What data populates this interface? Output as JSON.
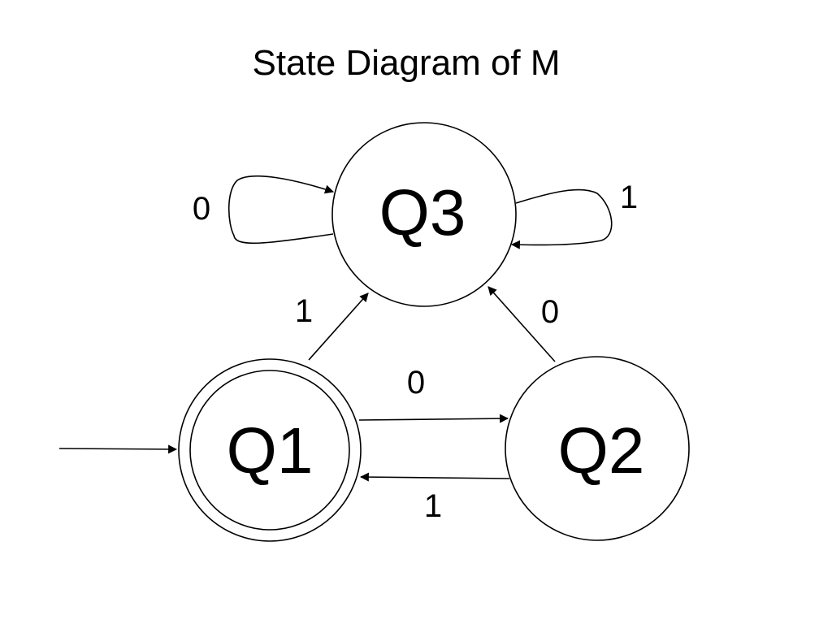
{
  "title": "State Diagram of M",
  "states": [
    {
      "id": "q1",
      "label": "Q1",
      "accepting": true,
      "start": true
    },
    {
      "id": "q2",
      "label": "Q2",
      "accepting": false,
      "start": false
    },
    {
      "id": "q3",
      "label": "Q3",
      "accepting": false,
      "start": false
    }
  ],
  "transitions": [
    {
      "from": "Q1",
      "to": "Q2",
      "symbol": "0"
    },
    {
      "from": "Q2",
      "to": "Q1",
      "symbol": "1"
    },
    {
      "from": "Q1",
      "to": "Q3",
      "symbol": "1"
    },
    {
      "from": "Q2",
      "to": "Q3",
      "symbol": "0"
    },
    {
      "from": "Q3",
      "to": "Q3",
      "symbol": "0"
    },
    {
      "from": "Q3",
      "to": "Q3",
      "symbol": "1"
    }
  ]
}
